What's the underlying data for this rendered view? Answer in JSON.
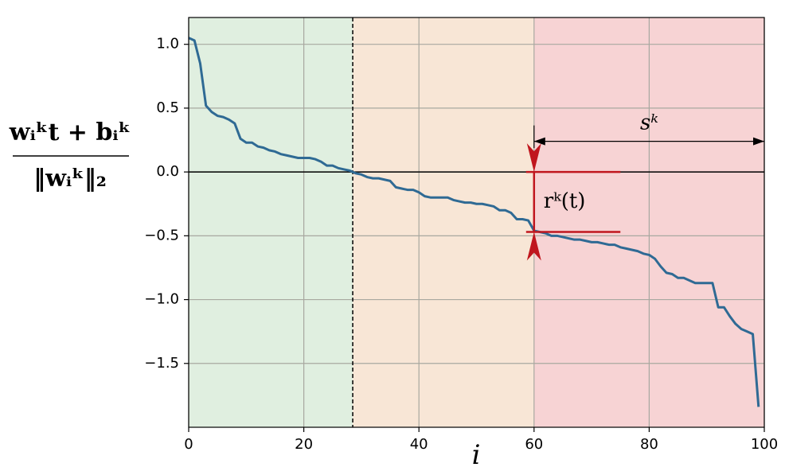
{
  "chart_data": {
    "type": "line",
    "ylabel_numerator": "wᵢᵏt + bᵢᵏ",
    "ylabel_denominator": "‖wᵢᵏ‖₂",
    "xlabel": "i",
    "x": [
      0,
      1,
      2,
      3,
      4,
      5,
      6,
      7,
      8,
      9,
      10,
      11,
      12,
      13,
      14,
      15,
      16,
      17,
      18,
      19,
      20,
      21,
      22,
      23,
      24,
      25,
      26,
      27,
      28,
      29,
      30,
      31,
      32,
      33,
      34,
      35,
      36,
      37,
      38,
      39,
      40,
      41,
      42,
      43,
      44,
      45,
      46,
      47,
      48,
      49,
      50,
      51,
      52,
      53,
      54,
      55,
      56,
      57,
      58,
      59,
      60,
      61,
      62,
      63,
      64,
      65,
      66,
      67,
      68,
      69,
      70,
      71,
      72,
      73,
      74,
      75,
      76,
      77,
      78,
      79,
      80,
      81,
      82,
      83,
      84,
      85,
      86,
      87,
      88,
      89,
      90,
      91,
      92,
      93,
      94,
      95,
      96,
      97,
      98,
      99
    ],
    "series": [
      {
        "color": "#2f6a94",
        "values": [
          1.05,
          1.03,
          0.85,
          0.52,
          0.47,
          0.44,
          0.43,
          0.41,
          0.38,
          0.26,
          0.23,
          0.23,
          0.2,
          0.19,
          0.17,
          0.16,
          0.14,
          0.13,
          0.12,
          0.11,
          0.11,
          0.11,
          0.1,
          0.08,
          0.05,
          0.05,
          0.03,
          0.02,
          0.01,
          -0.01,
          -0.02,
          -0.04,
          -0.05,
          -0.05,
          -0.06,
          -0.07,
          -0.12,
          -0.13,
          -0.14,
          -0.14,
          -0.16,
          -0.19,
          -0.2,
          -0.2,
          -0.2,
          -0.2,
          -0.22,
          -0.23,
          -0.24,
          -0.24,
          -0.25,
          -0.25,
          -0.26,
          -0.27,
          -0.3,
          -0.3,
          -0.32,
          -0.37,
          -0.37,
          -0.38,
          -0.46,
          -0.47,
          -0.48,
          -0.5,
          -0.5,
          -0.51,
          -0.52,
          -0.53,
          -0.53,
          -0.54,
          -0.55,
          -0.55,
          -0.56,
          -0.57,
          -0.57,
          -0.59,
          -0.6,
          -0.61,
          -0.62,
          -0.64,
          -0.65,
          -0.68,
          -0.74,
          -0.79,
          -0.8,
          -0.83,
          -0.83,
          -0.85,
          -0.87,
          -0.87,
          -0.87,
          -0.87,
          -1.06,
          -1.06,
          -1.13,
          -1.19,
          -1.23,
          -1.25,
          -1.27,
          -1.84
        ]
      }
    ],
    "xlim": [
      0,
      100
    ],
    "xticks": [
      0,
      20,
      40,
      60,
      80,
      100
    ],
    "ylim": [
      -2.0,
      1.21
    ],
    "yticks": [
      {
        "value": -1.5,
        "label": "−1.5"
      },
      {
        "value": -1,
        "label": "−1.0"
      },
      {
        "value": -0.5,
        "label": "−0.5"
      },
      {
        "value": 0,
        "label": "0.0"
      },
      {
        "value": 0.5,
        "label": "0.5"
      },
      {
        "value": 1,
        "label": "1.0"
      }
    ],
    "grid": true,
    "regions": [
      {
        "start": 0,
        "end": 28.5,
        "color": "#e0efe0"
      },
      {
        "start": 28.5,
        "end": 60,
        "color": "#f8e6d6"
      },
      {
        "start": 60,
        "end": 100,
        "color": "#f7d3d4"
      }
    ],
    "threshold_x": 28.5,
    "r_annotation": {
      "label": "rᵏ(t)",
      "x": 60,
      "y_top": 0,
      "y_bottom": -0.47,
      "x_end": 75,
      "color": "#c0161e"
    },
    "s_annotation": {
      "label": "sᵏ",
      "x_start": 60,
      "x_end": 100,
      "y": 0.24
    }
  }
}
